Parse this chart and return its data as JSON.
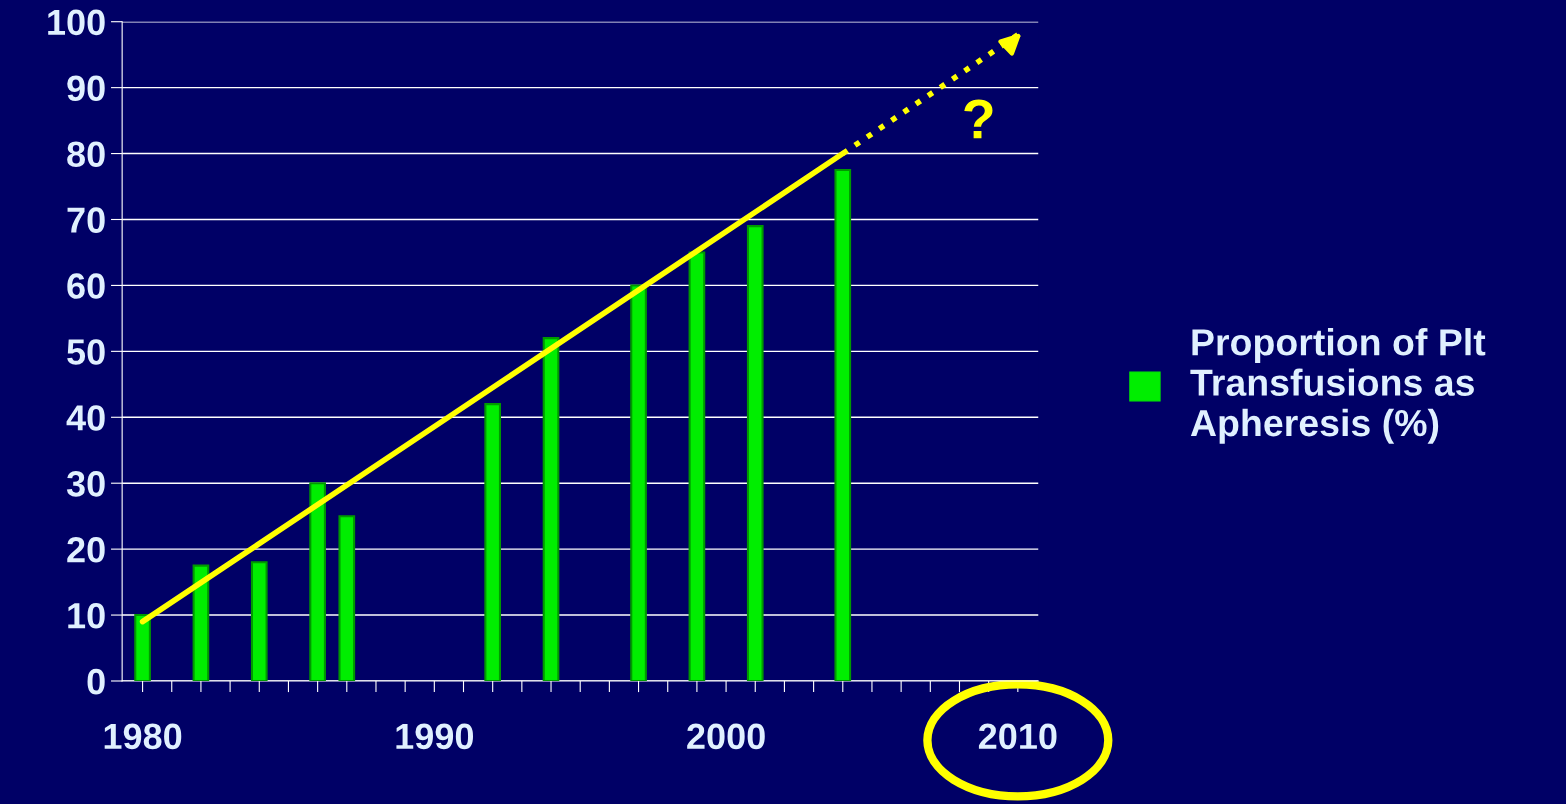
{
  "chart_data": {
    "type": "bar",
    "x": [
      1980,
      1982,
      1984,
      1986,
      1987,
      1992,
      1994,
      1997,
      1999,
      2001,
      2004
    ],
    "series": [
      {
        "name": "Proportion of Plt Transfusions as Apheresis (%)",
        "color": "#00ee00",
        "values": [
          10,
          17.5,
          18,
          30,
          25,
          42,
          52,
          60,
          65,
          69,
          77.5
        ]
      },
      {
        "type": "line",
        "color": "#ffff00",
        "x": [
          1980,
          2004
        ],
        "values": [
          9,
          80
        ],
        "line_style": "solid"
      },
      {
        "type": "line",
        "color": "#ffff00",
        "x": [
          2004,
          2010
        ],
        "values": [
          80,
          98
        ],
        "line_style": "dotted"
      }
    ],
    "xlim": [
      1979.3,
      2010.7
    ],
    "ylim": [
      0,
      100
    ],
    "xticks": [
      1980,
      {
        "value": 1981,
        "label": null
      },
      {
        "value": 1982,
        "label": null
      },
      {
        "value": 1983,
        "label": null
      },
      {
        "value": 1984,
        "label": null
      },
      {
        "value": 1985,
        "label": null
      },
      {
        "value": 1986,
        "label": null
      },
      {
        "value": 1987,
        "label": null
      },
      {
        "value": 1988,
        "label": null
      },
      {
        "value": 1989,
        "label": null
      },
      1990,
      {
        "value": 1991,
        "label": null
      },
      {
        "value": 1992,
        "label": null
      },
      {
        "value": 1993,
        "label": null
      },
      {
        "value": 1994,
        "label": null
      },
      {
        "value": 1995,
        "label": null
      },
      {
        "value": 1996,
        "label": null
      },
      {
        "value": 1997,
        "label": null
      },
      {
        "value": 1998,
        "label": null
      },
      {
        "value": 1999,
        "label": null
      },
      2000,
      {
        "value": 2001,
        "label": null
      },
      {
        "value": 2002,
        "label": null
      },
      {
        "value": 2003,
        "label": null
      },
      {
        "value": 2004,
        "label": null
      },
      {
        "value": 2005,
        "label": null
      },
      {
        "value": 2006,
        "label": null
      },
      {
        "value": 2007,
        "label": null
      },
      {
        "value": 2008,
        "label": null
      },
      {
        "value": 2009,
        "label": null
      },
      2010
    ],
    "yticks": [
      0,
      10,
      20,
      30,
      40,
      50,
      60,
      70,
      80,
      90,
      100
    ],
    "grid": "y",
    "legend": "right",
    "annotations": [
      "?"
    ]
  }
}
